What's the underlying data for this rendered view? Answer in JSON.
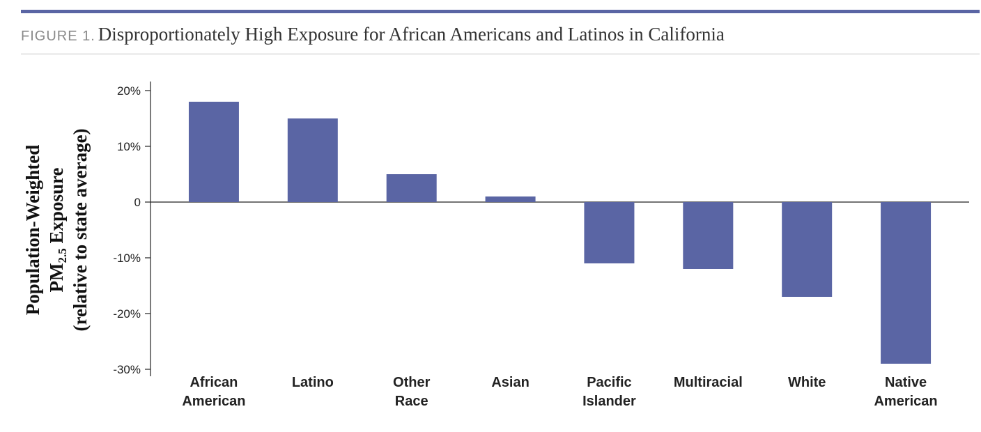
{
  "figure": {
    "label": "FIGURE 1.",
    "title": "Disproportionately High Exposure for African Americans and Latinos in California"
  },
  "colors": {
    "bar": "#5a65a4",
    "top_rule": "#5a65a4",
    "axis": "#222222",
    "tick_text": "#222222"
  },
  "chart_data": {
    "type": "bar",
    "title": "Disproportionately High Exposure for African Americans and Latinos in California",
    "ylabel_lines": [
      "Population-Weighted",
      "PM2.5 Exposure",
      "(relative to state average)"
    ],
    "ylabel_pm": {
      "base": "PM",
      "sub": "2.5",
      "rest": " Exposure"
    },
    "xlabel": "",
    "categories": [
      [
        "African",
        "American"
      ],
      [
        "Latino"
      ],
      [
        "Other",
        "Race"
      ],
      [
        "Asian"
      ],
      [
        "Pacific",
        "Islander"
      ],
      [
        "Multiracial"
      ],
      [
        "White"
      ],
      [
        "Native",
        "American"
      ]
    ],
    "values": [
      18,
      15,
      5,
      1,
      -11,
      -12,
      -17,
      -29
    ],
    "unit": "%",
    "ylim": [
      -30,
      20
    ],
    "yticks": [
      20,
      10,
      0,
      -10,
      -20,
      -30
    ],
    "ytick_labels": [
      "20%",
      "10%",
      "0",
      "-10%",
      "-20%",
      "-30%"
    ],
    "grid": false,
    "legend": "none"
  }
}
